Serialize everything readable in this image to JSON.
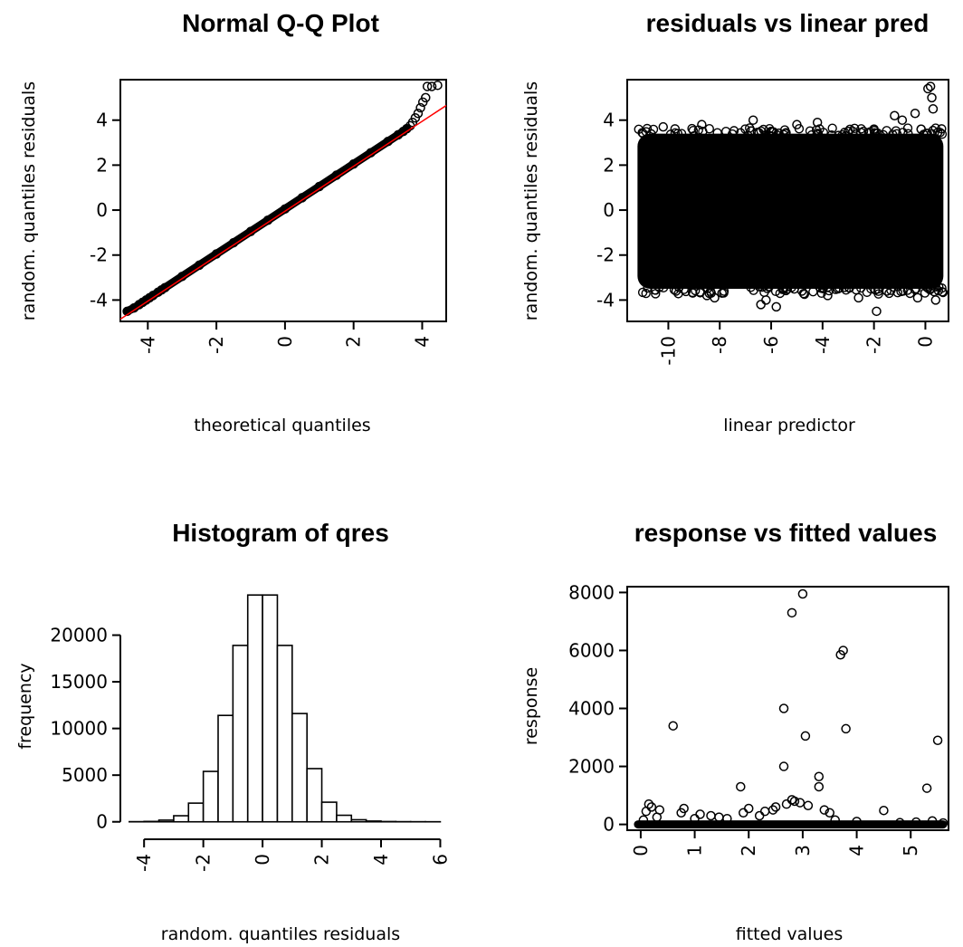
{
  "chart_data": [
    {
      "type": "scatter",
      "title": "Normal Q-Q Plot",
      "xlabel": "theoretical quantiles",
      "ylabel": "random. quantiles residuals",
      "xlim": [
        -4.8,
        4.7
      ],
      "ylim": [
        -4.95,
        5.8
      ],
      "x_ticks": [
        -4,
        -2,
        0,
        2,
        4
      ],
      "y_ticks": [
        -4,
        -2,
        0,
        2,
        4
      ],
      "points": {
        "x": [
          -4.6,
          -4.4,
          -4.25,
          -4.15,
          -4.05,
          -3.95,
          -3.85,
          -3.7,
          -3.6,
          -3.5,
          -3.0,
          -2.5,
          -2.0,
          -1.5,
          -1.0,
          -0.5,
          0,
          0.5,
          1.0,
          1.5,
          2.0,
          2.5,
          3.0,
          3.3,
          3.45,
          3.55,
          3.65,
          3.72,
          3.8,
          3.88,
          3.95,
          4.02,
          4.1,
          4.15,
          4.28,
          4.45
        ],
        "y": [
          -4.5,
          -4.35,
          -4.2,
          -4.1,
          -4.0,
          -3.9,
          -3.8,
          -3.65,
          -3.55,
          -3.45,
          -2.95,
          -2.45,
          -1.95,
          -1.45,
          -0.95,
          -0.45,
          0.05,
          0.55,
          1.05,
          1.55,
          2.05,
          2.55,
          3.05,
          3.35,
          3.5,
          3.62,
          3.75,
          3.9,
          4.1,
          4.3,
          4.55,
          4.8,
          5.0,
          5.5,
          5.5,
          5.55
        ]
      },
      "reference_line": {
        "x": [
          -4.8,
          4.7
        ],
        "y": [
          -4.85,
          4.65
        ],
        "color": "#ff0000"
      }
    },
    {
      "type": "scatter",
      "title": "residuals vs linear pred",
      "xlabel": "linear predictor",
      "ylabel": "random. quantiles residuals",
      "xlim": [
        -11.6,
        0.9
      ],
      "ylim": [
        -4.95,
        5.8
      ],
      "x_ticks": [
        -10,
        -8,
        -6,
        -4,
        -2,
        0
      ],
      "y_ticks": [
        -4,
        -2,
        0,
        2,
        4
      ],
      "band": {
        "x_from": -11.2,
        "x_to": 0.7,
        "y_from": -3.5,
        "y_to": 3.4
      },
      "points": {
        "x": [
          -10.8,
          -11.0,
          -10.2,
          -9.7,
          -8.7,
          -8.5,
          -8.2,
          -6.7,
          -6.2,
          -5.8,
          -5.0,
          -4.2,
          -3.8,
          -3.0,
          -2.6,
          -1.9,
          -1.2,
          -0.9,
          -0.6,
          -0.4,
          0.2,
          0.1,
          0.25,
          0.3,
          -2.0,
          -6.0,
          -6.4,
          -4.8,
          -3.4,
          -1.5,
          -0.3,
          0.4,
          -9.0,
          -11.0
        ],
        "y": [
          2.2,
          1.4,
          3.7,
          -3.6,
          3.8,
          -3.8,
          -3.9,
          4.0,
          -4.0,
          -4.3,
          3.8,
          3.9,
          -3.8,
          3.5,
          -3.9,
          -4.5,
          4.2,
          4.0,
          -3.7,
          4.3,
          5.5,
          5.4,
          5.0,
          4.5,
          3.6,
          3.5,
          -4.2,
          -3.6,
          -3.5,
          -3.6,
          -3.9,
          -4.0,
          -3.2,
          -1.8
        ]
      }
    },
    {
      "type": "bar",
      "title": "Histogram of qres",
      "xlabel": "random. quantiles residuals",
      "ylabel": "frequency",
      "xlim": [
        -4.8,
        6.2
      ],
      "ylim": [
        -900,
        25000
      ],
      "x_ticks": [
        -4,
        -2,
        0,
        2,
        4,
        6
      ],
      "y_ticks": [
        0,
        5000,
        10000,
        15000,
        20000
      ],
      "bins": {
        "edges": [
          -4.5,
          -4,
          -3.5,
          -3,
          -2.5,
          -2,
          -1.5,
          -1,
          -0.5,
          0,
          0.5,
          1,
          1.5,
          2,
          2.5,
          3,
          3.5,
          4,
          4.5,
          5,
          5.5,
          6
        ],
        "counts": [
          15,
          40,
          180,
          650,
          2000,
          5400,
          11400,
          18900,
          24300,
          24300,
          18900,
          11600,
          5700,
          2100,
          700,
          220,
          80,
          30,
          15,
          10,
          6
        ]
      }
    },
    {
      "type": "scatter",
      "title": "response vs fitted values",
      "xlabel": "fitted values",
      "ylabel": "response",
      "xlim": [
        -0.25,
        5.7
      ],
      "ylim": [
        -200,
        8200
      ],
      "x_ticks": [
        0,
        1,
        2,
        3,
        4,
        5
      ],
      "y_ticks": [
        0,
        2000,
        4000,
        6000,
        8000
      ],
      "baseline": {
        "x_from": -0.05,
        "x_to": 5.6,
        "y": 0
      },
      "points": {
        "x": [
          0.6,
          2.8,
          3.0,
          3.7,
          3.75,
          2.65,
          3.05,
          3.8,
          2.65,
          3.3,
          3.3,
          1.85,
          5.5,
          5.3,
          0.15,
          0.2,
          0.1,
          0.35,
          0.75,
          0.8,
          1.1,
          1.3,
          1.45,
          1.6,
          1.9,
          2.0,
          2.3,
          2.45,
          2.5,
          2.7,
          2.8,
          2.85,
          2.95,
          3.1,
          3.4,
          3.5,
          4.5,
          5.4,
          0.05,
          0.3,
          1.0,
          2.2,
          3.6,
          4.0,
          4.8,
          5.1,
          5.6
        ],
        "y": [
          3400,
          7300,
          7950,
          5850,
          6000,
          4000,
          3050,
          3300,
          2000,
          1650,
          1300,
          1300,
          2900,
          1250,
          700,
          600,
          450,
          500,
          400,
          550,
          350,
          300,
          250,
          200,
          400,
          550,
          450,
          500,
          600,
          700,
          850,
          800,
          750,
          650,
          500,
          400,
          480,
          120,
          150,
          250,
          200,
          300,
          150,
          100,
          60,
          80,
          50
        ]
      }
    }
  ]
}
